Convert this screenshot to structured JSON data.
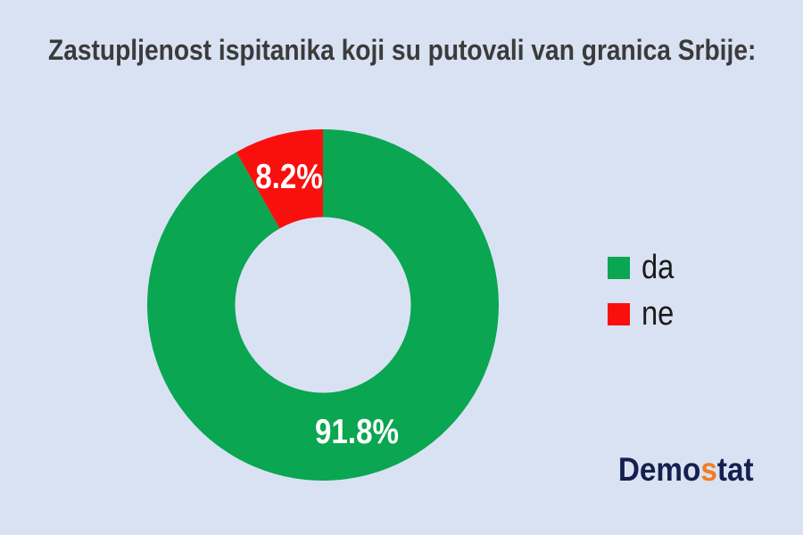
{
  "title": "Zastupljenost ispitanika koji su putovali van granica Srbije:",
  "colors": {
    "background": "#D9E2F3",
    "title_text": "#3B3B3B",
    "da_green": "#0AA651",
    "ne_red": "#FA0F0F",
    "slice_label_text": "#FFFFFF",
    "legend_text": "#1A1A1A",
    "logo_navy": "#16204E",
    "logo_orange": "#F47B20"
  },
  "chart_data": {
    "type": "pie",
    "subtype": "donut",
    "title": "Zastupljenost ispitanika koji su putovali van granica Srbije:",
    "categories": [
      "da",
      "ne"
    ],
    "values": [
      91.8,
      8.2
    ],
    "labels": [
      "91.8%",
      "8.2%"
    ],
    "colors": [
      "#0AA651",
      "#FA0F0F"
    ],
    "donut_hole": 0.5,
    "start_angle_deg": 0,
    "direction": "clockwise",
    "legend_position": "right",
    "legend_entries": [
      "da",
      "ne"
    ]
  },
  "legend": {
    "items": [
      {
        "label": "da",
        "color": "#0AA651"
      },
      {
        "label": "ne",
        "color": "#FA0F0F"
      }
    ]
  },
  "logo": {
    "part1": "Demo",
    "part2": "s",
    "part3": "tat",
    "full": "Demostat"
  }
}
